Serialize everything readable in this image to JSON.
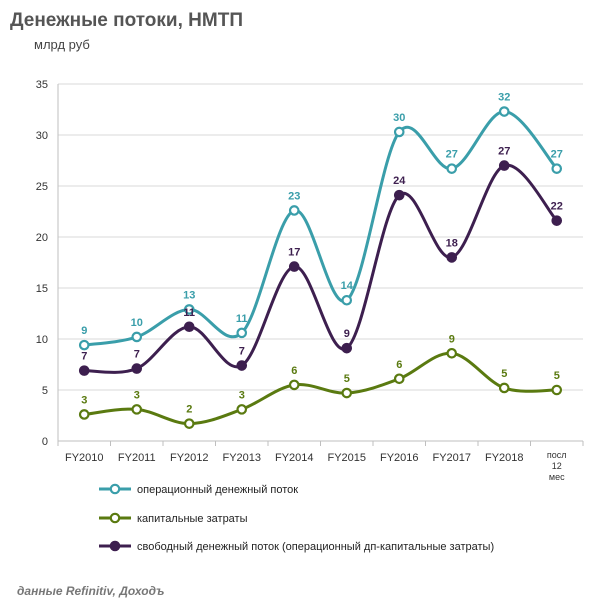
{
  "header": {
    "title": "Денежные потоки, НМТП",
    "subtitle": "млрд руб"
  },
  "footer": {
    "source": "данные Refinitiv, Доходъ"
  },
  "chart_data": {
    "type": "line",
    "title": "Денежные потоки, НМТП",
    "ylabel": "млрд руб",
    "xlabel": "",
    "ylim": [
      0,
      35
    ],
    "yticks": [
      0,
      5,
      10,
      15,
      20,
      25,
      30,
      35
    ],
    "grid": "horizontal",
    "legend_position": "bottom",
    "categories": [
      "FY2010",
      "FY2011",
      "FY2012",
      "FY2013",
      "FY2014",
      "FY2015",
      "FY2016",
      "FY2017",
      "FY2018",
      "посл 12 мес"
    ],
    "series": [
      {
        "name": "операционный денежный поток",
        "color": "#3a9eaa",
        "values": [
          9.4,
          10.2,
          12.9,
          10.6,
          22.6,
          13.8,
          30.3,
          26.7,
          32.3,
          26.7
        ],
        "labels": [
          "9",
          "10",
          "13",
          "11",
          "23",
          "14",
          "30",
          "27",
          "32",
          "27"
        ]
      },
      {
        "name": "капитальные затраты",
        "color": "#5a7a10",
        "values": [
          2.6,
          3.1,
          1.7,
          3.1,
          5.5,
          4.7,
          6.1,
          8.6,
          5.2,
          5.0
        ],
        "labels": [
          "3",
          "3",
          "2",
          "3",
          "6",
          "5",
          "6",
          "9",
          "5",
          "5"
        ]
      },
      {
        "name": "свободный денежный поток (операционный дп-капитальные затраты)",
        "color": "#3d1f4f",
        "values": [
          6.9,
          7.1,
          11.2,
          7.4,
          17.1,
          9.1,
          24.1,
          18.0,
          27.0,
          21.6
        ],
        "labels": [
          "7",
          "7",
          "11",
          "7",
          "17",
          "9",
          "24",
          "18",
          "27",
          "22"
        ]
      }
    ]
  }
}
